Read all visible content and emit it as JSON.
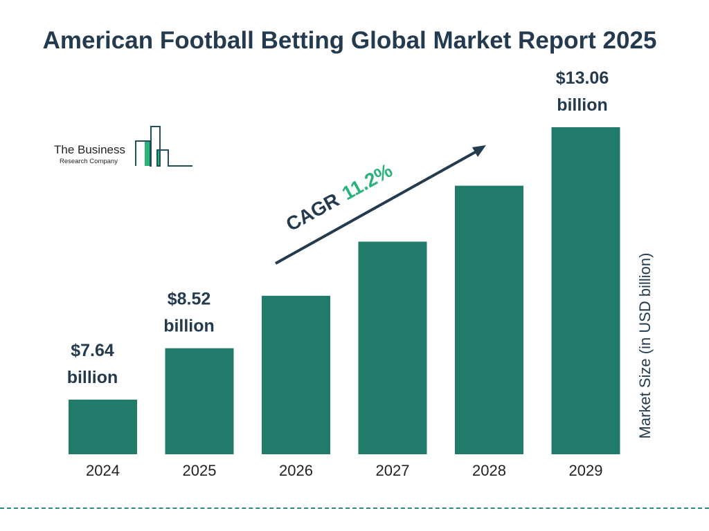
{
  "title": "American Football Betting Global Market Report 2025",
  "logo": {
    "line1": "The Business",
    "line2": "Research Company"
  },
  "colors": {
    "bar": "#217b6b",
    "title": "#233a4f",
    "cagr": "#2ab27b"
  },
  "chart_data": {
    "type": "bar",
    "title": "American Football Betting Global Market Report 2025",
    "categories": [
      "2024",
      "2025",
      "2026",
      "2027",
      "2028",
      "2029"
    ],
    "values": [
      7.64,
      8.52,
      9.47,
      10.53,
      11.71,
      13.06
    ],
    "data_labels": [
      {
        "index": 0,
        "text": [
          "$7.64",
          "billion"
        ]
      },
      {
        "index": 1,
        "text": [
          "$8.52",
          "billion"
        ]
      },
      {
        "index": 5,
        "text": [
          "$13.06",
          "billion"
        ]
      }
    ],
    "ylabel": "Market Size (in USD billion)",
    "xlabel": "",
    "annotation": {
      "prefix": "CAGR",
      "value": "11.2%"
    },
    "grid": false
  }
}
